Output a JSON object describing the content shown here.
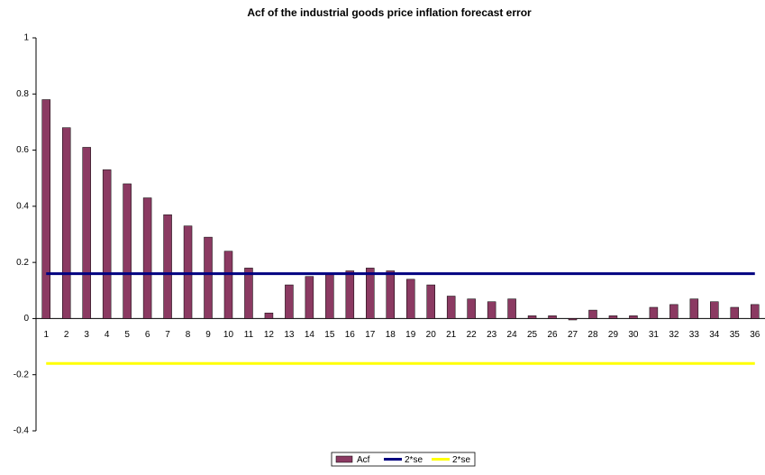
{
  "chart_data": {
    "type": "bar",
    "title": "Acf of the industrial goods price inflation forecast error",
    "categories": [
      1,
      2,
      3,
      4,
      5,
      6,
      7,
      8,
      9,
      10,
      11,
      12,
      13,
      14,
      15,
      16,
      17,
      18,
      19,
      20,
      21,
      22,
      23,
      24,
      25,
      26,
      27,
      28,
      29,
      30,
      31,
      32,
      33,
      34,
      35,
      36
    ],
    "series": [
      {
        "name": "Acf",
        "type": "bar",
        "color": "#8b3a62",
        "values": [
          0.78,
          0.68,
          0.61,
          0.53,
          0.48,
          0.43,
          0.37,
          0.33,
          0.29,
          0.24,
          0.18,
          0.02,
          0.12,
          0.15,
          0.16,
          0.17,
          0.18,
          0.17,
          0.14,
          0.12,
          0.08,
          0.07,
          0.06,
          0.07,
          0.01,
          0.01,
          -0.005,
          0.03,
          0.01,
          0.01,
          0.04,
          0.05,
          0.07,
          0.06,
          0.04,
          0.05
        ]
      },
      {
        "name": "2*se",
        "type": "line",
        "color": "#000080",
        "values": [
          0.16,
          0.16,
          0.16,
          0.16,
          0.16,
          0.16,
          0.16,
          0.16,
          0.16,
          0.16,
          0.16,
          0.16,
          0.16,
          0.16,
          0.16,
          0.16,
          0.16,
          0.16,
          0.16,
          0.16,
          0.16,
          0.16,
          0.16,
          0.16,
          0.16,
          0.16,
          0.16,
          0.16,
          0.16,
          0.16,
          0.16,
          0.16,
          0.16,
          0.16,
          0.16,
          0.16
        ]
      },
      {
        "name": "2*se",
        "type": "line",
        "color": "#ffff00",
        "values": [
          -0.16,
          -0.16,
          -0.16,
          -0.16,
          -0.16,
          -0.16,
          -0.16,
          -0.16,
          -0.16,
          -0.16,
          -0.16,
          -0.16,
          -0.16,
          -0.16,
          -0.16,
          -0.16,
          -0.16,
          -0.16,
          -0.16,
          -0.16,
          -0.16,
          -0.16,
          -0.16,
          -0.16,
          -0.16,
          -0.16,
          -0.16,
          -0.16,
          -0.16,
          -0.16,
          -0.16,
          -0.16,
          -0.16,
          -0.16,
          -0.16,
          -0.16
        ]
      }
    ],
    "ylim": [
      -0.4,
      1
    ],
    "yticks": [
      1,
      0.8,
      0.6,
      0.4,
      0.2,
      0,
      -0.2,
      -0.4
    ],
    "grid": false,
    "legend": "bottom"
  }
}
